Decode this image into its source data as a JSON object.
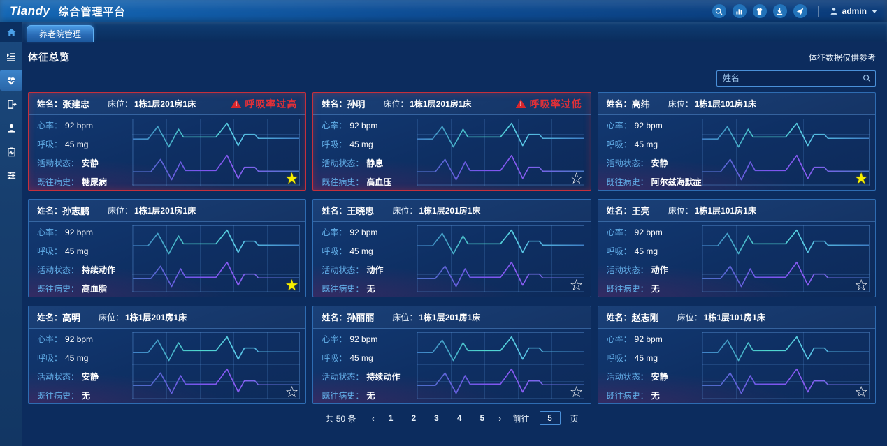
{
  "header": {
    "logo": "Tiandy",
    "title": "综合管理平台",
    "icons": [
      "search-icon",
      "stats-icon",
      "shirt-icon",
      "download-icon",
      "send-icon"
    ],
    "user": "admin"
  },
  "tabs": [
    {
      "label": "养老院管理",
      "active": true
    }
  ],
  "sidebar": {
    "items": [
      "home-icon",
      "playlist-icon",
      "heart-ecg-icon",
      "door-exit-icon",
      "person-icon",
      "medical-record-icon",
      "sliders-icon"
    ],
    "active_item": "heart-ecg-icon"
  },
  "page": {
    "title": "体征总览",
    "disclaimer": "体征数据仅供参考",
    "search_placeholder": "姓名"
  },
  "labels": {
    "name": "姓名：",
    "bed": "床位：",
    "heart_rate": "心率：",
    "breath": "呼吸：",
    "activity": "活动状态：",
    "history": "既往病史："
  },
  "cards": [
    {
      "name": "张建忠",
      "bed": "1栋1层201房1床",
      "alert": "呼吸率过高",
      "heart_rate": "92 bpm",
      "breath": "45 mg",
      "activity": "安静",
      "history": "糖尿病",
      "starred": true
    },
    {
      "name": "孙明",
      "bed": "1栋1层201房1床",
      "alert": "呼吸率过低",
      "heart_rate": "92 bpm",
      "breath": "45 mg",
      "activity": "静息",
      "history": "高血压",
      "starred": false
    },
    {
      "name": "高纬",
      "bed": "1栋1层101房1床",
      "alert": null,
      "heart_rate": "92 bpm",
      "breath": "45 mg",
      "activity": "安静",
      "history": "阿尔兹海默症",
      "starred": true
    },
    {
      "name": "孙志鹏",
      "bed": "1栋1层201房1床",
      "alert": null,
      "heart_rate": "92 bpm",
      "breath": "45 mg",
      "activity": "持续动作",
      "history": "高血脂",
      "starred": true
    },
    {
      "name": "王晓忠",
      "bed": "1栋1层201房1床",
      "alert": null,
      "heart_rate": "92 bpm",
      "breath": "45 mg",
      "activity": "动作",
      "history": "无",
      "starred": false
    },
    {
      "name": "王亮",
      "bed": "1栋1层101房1床",
      "alert": null,
      "heart_rate": "92 bpm",
      "breath": "45 mg",
      "activity": "动作",
      "history": "无",
      "starred": false
    },
    {
      "name": "高明",
      "bed": "1栋1层201房1床",
      "alert": null,
      "heart_rate": "92 bpm",
      "breath": "45 mg",
      "activity": "安静",
      "history": "无",
      "starred": false
    },
    {
      "name": "孙丽丽",
      "bed": "1栋1层201房1床",
      "alert": null,
      "heart_rate": "92 bpm",
      "breath": "45 mg",
      "activity": "持续动作",
      "history": "无",
      "starred": false
    },
    {
      "name": "赵志刚",
      "bed": "1栋1层101房1床",
      "alert": null,
      "heart_rate": "92 bpm",
      "breath": "45 mg",
      "activity": "安静",
      "history": "无",
      "starred": false
    }
  ],
  "sparkline": {
    "heart": "0,30 22,30 36,11 52,42 66,15 73,27 120,27 136,6 152,40 161,23 176,23 181,29 240,29",
    "breath": "0,80 26,80 40,61 56,92 69,65 76,78 120,78 136,55 152,90 161,73 176,73 181,79 240,79"
  },
  "pagination": {
    "total": "共 50 条",
    "prev": "‹",
    "next": "›",
    "pages": [
      "1",
      "2",
      "3",
      "4",
      "5"
    ],
    "goto_label": "前往",
    "goto_value": "5",
    "page_suffix": "页"
  },
  "colors": {
    "accent_blue": "#2e6cb2",
    "alert_red": "#e03038",
    "star_yellow": "#f6ef00",
    "label_blue": "#62aee8",
    "line_heart": "#4ed9cc",
    "line_breath": "#8a5cf4"
  }
}
